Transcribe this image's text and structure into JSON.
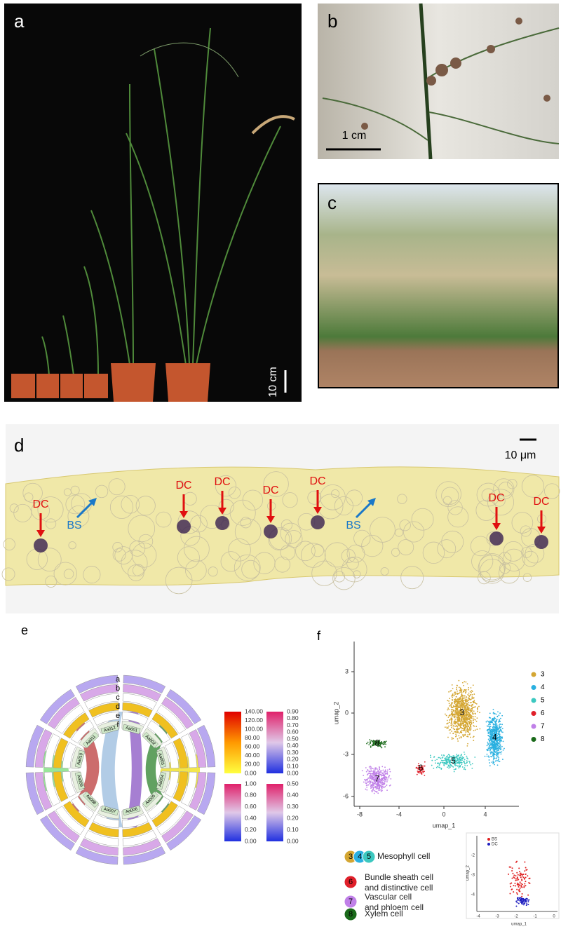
{
  "panels": {
    "a": {
      "label": "a",
      "scale_bar": "10 cm"
    },
    "b": {
      "label": "b",
      "scale_bar": "1 cm"
    },
    "c": {
      "label": "c"
    },
    "d": {
      "label": "d",
      "scale_bar": "10 μm",
      "annotations": [
        "DC",
        "BS",
        "DC",
        "DC",
        "DC",
        "DC",
        "BS",
        "DC",
        "DC"
      ]
    },
    "e": {
      "label": "e",
      "chromosomes": [
        "Aa001",
        "Aa002",
        "Aa003",
        "Aa004",
        "Aa005",
        "Aa006",
        "Aa007",
        "Aa008",
        "Aa009",
        "Aa010",
        "Aa011",
        "Aa012"
      ],
      "tracks": [
        "a",
        "b",
        "c",
        "d",
        "e",
        "f"
      ],
      "colorbars": [
        {
          "ticks": [
            "140.00",
            "120.00",
            "100.00",
            "80.00",
            "60.00",
            "40.00",
            "20.00",
            "0.00"
          ]
        },
        {
          "ticks": [
            "0.90",
            "0.80",
            "0.70",
            "0.60",
            "0.50",
            "0.40",
            "0.30",
            "0.20",
            "0.10",
            "0.00"
          ]
        },
        {
          "ticks": [
            "1.00",
            "0.80",
            "0.60",
            "0.40",
            "0.20",
            "0.00"
          ]
        },
        {
          "ticks": [
            "0.50",
            "0.40",
            "0.30",
            "0.20",
            "0.10",
            "0.00"
          ]
        }
      ]
    },
    "f": {
      "label": "f",
      "x_label": "umap_1",
      "y_label": "umap_2",
      "xticks": [
        "-8",
        "-4",
        "0",
        "4"
      ],
      "yticks": [
        "3",
        "0",
        "-3",
        "-6"
      ],
      "legend": [
        {
          "label": "3",
          "color": "#d4a632"
        },
        {
          "label": "4",
          "color": "#2ab0e0"
        },
        {
          "label": "5",
          "color": "#3cc8c0"
        },
        {
          "label": "6",
          "color": "#e0202a"
        },
        {
          "label": "7",
          "color": "#c080e8"
        },
        {
          "label": "8",
          "color": "#1a6a1a"
        }
      ],
      "cell_types": [
        {
          "ids": [
            "3",
            "4",
            "5"
          ],
          "name": "Mesophyll cell"
        },
        {
          "ids": [
            "6"
          ],
          "name": [
            "Bundle sheath cell",
            "and distinctive cell"
          ]
        },
        {
          "ids": [
            "7"
          ],
          "name": [
            "Vascular cell",
            "and phloem cell"
          ]
        },
        {
          "ids": [
            "8"
          ],
          "name": "Xylem cell"
        }
      ],
      "inset": {
        "legend": [
          {
            "label": "BS",
            "color": "#e02020"
          },
          {
            "label": "DC",
            "color": "#2020c0"
          }
        ],
        "x_label": "umap_1",
        "y_label": "umap_2",
        "xticks": [
          "-4",
          "-3",
          "-2",
          "-1",
          "0"
        ],
        "yticks": [
          "-2",
          "-3",
          "-4"
        ]
      }
    }
  }
}
